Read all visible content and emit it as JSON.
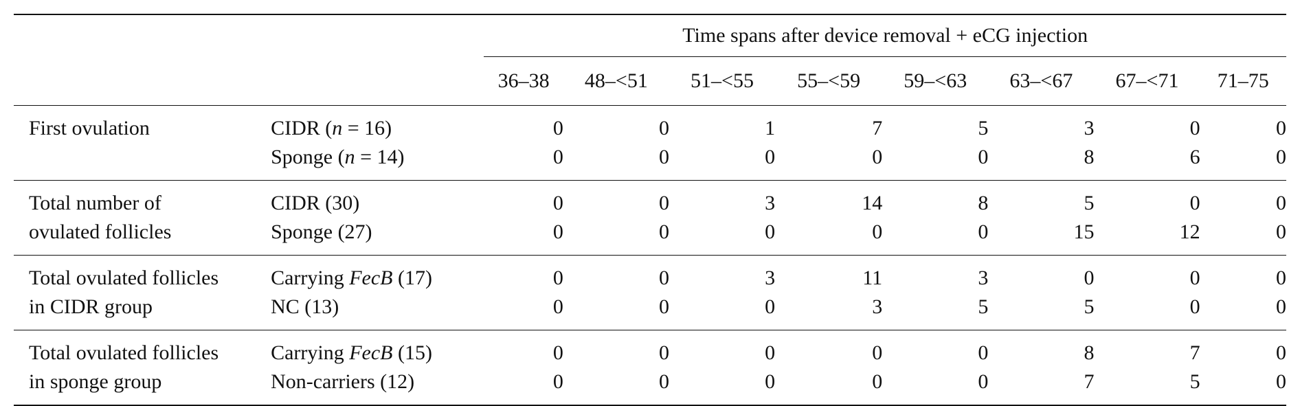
{
  "table": {
    "spanning_header": "Time spans after device removal + eCG injection",
    "columns": [
      "36–38",
      "48–<51",
      "51–<55",
      "55–<59",
      "59–<63",
      "63–<67",
      "67–<71",
      "71–75"
    ],
    "groups": [
      {
        "label_lines": [
          "First ovulation",
          ""
        ],
        "rows": [
          {
            "pre": "CIDR (",
            "italic": "n",
            "post": " = 16)",
            "values": [
              "0",
              "0",
              "1",
              "7",
              "5",
              "3",
              "0",
              "0"
            ]
          },
          {
            "pre": "Sponge (",
            "italic": "n",
            "post": " = 14)",
            "values": [
              "0",
              "0",
              "0",
              "0",
              "0",
              "8",
              "6",
              "0"
            ]
          }
        ]
      },
      {
        "label_lines": [
          "Total number of",
          "ovulated follicles"
        ],
        "rows": [
          {
            "pre": "CIDR (30)",
            "italic": "",
            "post": "",
            "values": [
              "0",
              "0",
              "3",
              "14",
              "8",
              "5",
              "0",
              "0"
            ]
          },
          {
            "pre": "Sponge (27)",
            "italic": "",
            "post": "",
            "values": [
              "0",
              "0",
              "0",
              "0",
              "0",
              "15",
              "12",
              "0"
            ]
          }
        ]
      },
      {
        "label_lines": [
          "Total ovulated follicles",
          "in CIDR group"
        ],
        "rows": [
          {
            "pre": "Carrying ",
            "italic": "FecB",
            "post": " (17)",
            "values": [
              "0",
              "0",
              "3",
              "11",
              "3",
              "0",
              "0",
              "0"
            ]
          },
          {
            "pre": "NC (13)",
            "italic": "",
            "post": "",
            "values": [
              "0",
              "0",
              "0",
              "3",
              "5",
              "5",
              "0",
              "0"
            ]
          }
        ]
      },
      {
        "label_lines": [
          "Total ovulated follicles",
          "in sponge group"
        ],
        "rows": [
          {
            "pre": "Carrying ",
            "italic": "FecB",
            "post": " (15)",
            "values": [
              "0",
              "0",
              "0",
              "0",
              "0",
              "8",
              "7",
              "0"
            ]
          },
          {
            "pre": "Non-carriers (12)",
            "italic": "",
            "post": "",
            "values": [
              "0",
              "0",
              "0",
              "0",
              "0",
              "7",
              "5",
              "0"
            ]
          }
        ]
      }
    ]
  }
}
